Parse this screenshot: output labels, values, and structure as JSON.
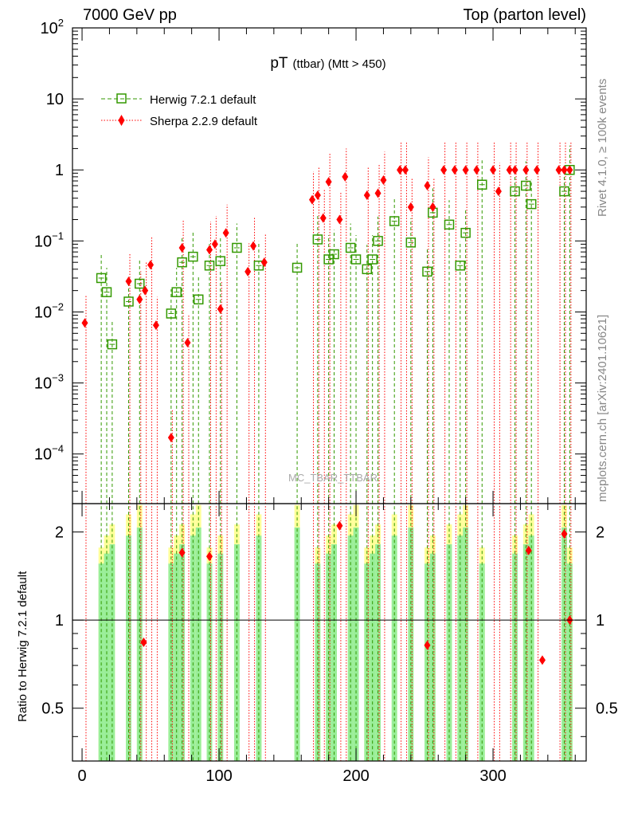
{
  "header": {
    "left": "7000 GeV pp",
    "right": "Top (parton level)"
  },
  "side": {
    "top": "Rivet 4.1.0, ≥ 100k events",
    "bottom": "mcplots.cern.ch [arXiv:2401.10621]"
  },
  "plot": {
    "title_main": "pT",
    "title_sub": "(ttbar) (Mtt > 450)",
    "watermark": "MC_TBAR_TTBAR",
    "ratio_ylabel": "Ratio to Herwig 7.2.1 default"
  },
  "legend": [
    {
      "name": "Herwig 7.2.1 default",
      "color": "#339900",
      "marker": "open-square",
      "line": "dashed"
    },
    {
      "name": "Sherpa 2.2.9 default",
      "color": "#ff0000",
      "marker": "filled-diamond",
      "line": "dotted"
    }
  ],
  "colors": {
    "band_green": "#99ee99",
    "band_yellow": "#ffff99",
    "herwig": "#339900",
    "sherpa": "#ff0000"
  },
  "chart_data": {
    "type": "scatter",
    "title": "pT (ttbar) (Mtt > 450)",
    "xlabel": "",
    "ylabel": "",
    "xlim": [
      -7,
      368
    ],
    "xticks": [
      0,
      100,
      200,
      300
    ],
    "ylim_log": [
      2e-05,
      100
    ],
    "yticks_main": [
      {
        "v": 0.0001,
        "base": "10",
        "exp": "−4"
      },
      {
        "v": 0.001,
        "base": "10",
        "exp": "−3"
      },
      {
        "v": 0.01,
        "base": "10",
        "exp": "−2"
      },
      {
        "v": 0.1,
        "base": "10",
        "exp": "−1"
      },
      {
        "v": 1,
        "base": "1",
        "exp": ""
      },
      {
        "v": 10,
        "base": "10",
        "exp": ""
      },
      {
        "v": 100,
        "base": "10",
        "exp": "2"
      }
    ],
    "ratio_ylim": [
      0.33,
      2.5
    ],
    "ratio_yticks": [
      0.5,
      1,
      2
    ],
    "series": [
      {
        "name": "Herwig 7.2.1 default",
        "x": [
          14,
          18,
          22,
          34,
          42,
          65,
          69,
          73,
          81,
          85,
          93,
          101,
          113,
          129,
          157,
          172,
          180,
          184,
          196,
          200,
          208,
          212,
          216,
          228,
          240,
          252,
          256,
          268,
          276,
          280,
          292,
          316,
          324,
          328,
          352,
          356
        ],
        "y": [
          0.03,
          0.019,
          0.0035,
          0.014,
          0.025,
          0.0095,
          0.019,
          0.05,
          0.06,
          0.015,
          0.045,
          0.052,
          0.08,
          0.045,
          0.042,
          0.105,
          0.055,
          0.065,
          0.08,
          0.055,
          0.04,
          0.055,
          0.1,
          0.19,
          0.095,
          0.037,
          0.25,
          0.17,
          0.045,
          0.13,
          0.62,
          0.5,
          0.6,
          0.33,
          0.5,
          1.0
        ]
      },
      {
        "name": "Sherpa 2.2.9 default",
        "x": [
          2,
          34,
          42,
          46,
          50,
          54,
          65,
          73,
          77,
          93,
          97,
          101,
          105,
          121,
          125,
          133,
          168,
          172,
          176,
          180,
          188,
          192,
          208,
          216,
          220,
          232,
          236,
          240,
          252,
          256,
          264,
          272,
          280,
          288,
          300,
          304,
          312,
          316,
          324,
          332,
          348,
          352,
          356
        ],
        "y": [
          0.007,
          0.027,
          0.015,
          0.02,
          0.046,
          0.0065,
          0.00017,
          0.08,
          0.0037,
          0.075,
          0.09,
          0.011,
          0.13,
          0.037,
          0.085,
          0.05,
          0.38,
          0.44,
          0.21,
          0.68,
          0.2,
          0.8,
          0.44,
          0.47,
          0.72,
          1.0,
          1.0,
          0.3,
          0.6,
          0.3,
          1.0,
          1.0,
          1.0,
          1.0,
          1.0,
          0.5,
          1.0,
          1.0,
          1.0,
          1.0,
          1.0,
          1.0,
          1.0
        ]
      }
    ],
    "ratio": [
      {
        "x": 45,
        "y": 0.84
      },
      {
        "x": 73,
        "y": 1.7
      },
      {
        "x": 93,
        "y": 1.65
      },
      {
        "x": 188,
        "y": 2.1
      },
      {
        "x": 252,
        "y": 0.82
      },
      {
        "x": 326,
        "y": 1.73
      },
      {
        "x": 336,
        "y": 0.73
      },
      {
        "x": 352,
        "y": 1.97
      },
      {
        "x": 356,
        "y": 1.0
      }
    ]
  }
}
